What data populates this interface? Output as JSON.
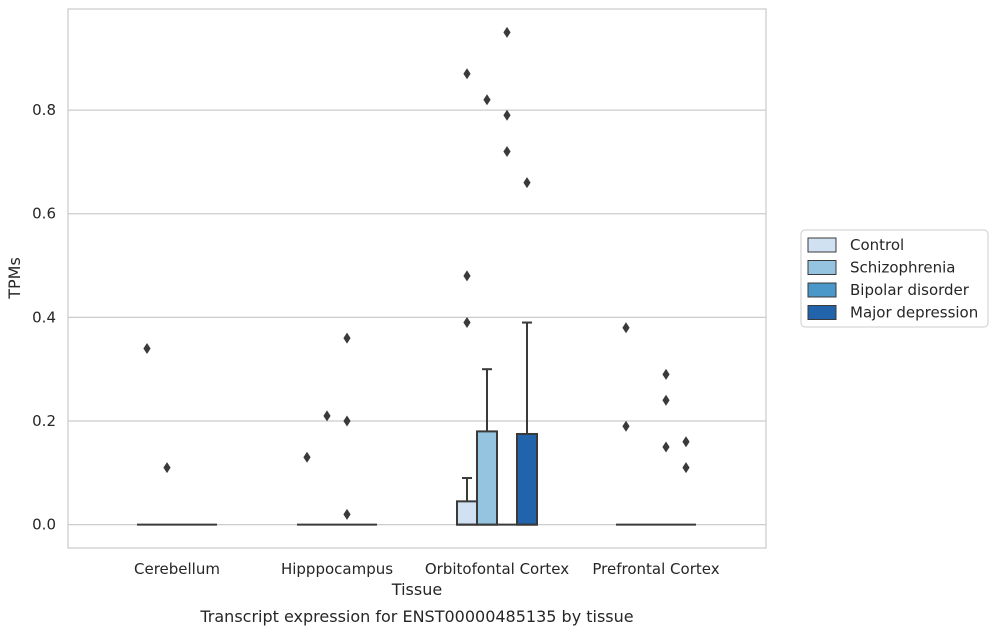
{
  "chart_data": {
    "type": "box",
    "xlabel": "Tissue",
    "ylabel": "TPMs",
    "caption": "Transcript expression for ENST00000485135 by tissue",
    "categories": [
      "Cerebellum",
      "Hipppocampus",
      "Orbitofontal Cortex",
      "Prefrontal Cortex"
    ],
    "ylim": [
      -0.045,
      0.995
    ],
    "yticks": [
      0.0,
      0.2,
      0.4,
      0.6,
      0.8
    ],
    "ytick_labels": [
      "0.0",
      "0.2",
      "0.4",
      "0.6",
      "0.8"
    ],
    "grid": "horizontal",
    "legend_position": "right",
    "series": [
      {
        "name": "Control",
        "color": "#d0e1f2",
        "boxes": [
          {
            "q1": 0.0,
            "median": 0.0,
            "q3": 0.0,
            "whisker_low": 0.0,
            "whisker_high": 0.0,
            "outliers": [
              0.34
            ]
          },
          {
            "q1": 0.0,
            "median": 0.0,
            "q3": 0.0,
            "whisker_low": 0.0,
            "whisker_high": 0.0,
            "outliers": [
              0.13
            ]
          },
          {
            "q1": 0.0,
            "median": 0.0,
            "q3": 0.045,
            "whisker_low": 0.0,
            "whisker_high": 0.09,
            "outliers": [
              0.39,
              0.48,
              0.87
            ]
          },
          {
            "q1": 0.0,
            "median": 0.0,
            "q3": 0.0,
            "whisker_low": 0.0,
            "whisker_high": 0.0,
            "outliers": [
              0.19,
              0.38
            ]
          }
        ]
      },
      {
        "name": "Schizophrenia",
        "color": "#94c4df",
        "boxes": [
          {
            "q1": 0.0,
            "median": 0.0,
            "q3": 0.0,
            "whisker_low": 0.0,
            "whisker_high": 0.0,
            "outliers": [
              0.11
            ]
          },
          {
            "q1": 0.0,
            "median": 0.0,
            "q3": 0.0,
            "whisker_low": 0.0,
            "whisker_high": 0.0,
            "outliers": [
              0.21
            ]
          },
          {
            "q1": 0.0,
            "median": 0.0,
            "q3": 0.18,
            "whisker_low": 0.0,
            "whisker_high": 0.3,
            "outliers": [
              0.82
            ]
          },
          {
            "q1": 0.0,
            "median": 0.0,
            "q3": 0.0,
            "whisker_low": 0.0,
            "whisker_high": 0.0,
            "outliers": []
          }
        ]
      },
      {
        "name": "Bipolar disorder",
        "color": "#4a98c9",
        "boxes": [
          {
            "q1": 0.0,
            "median": 0.0,
            "q3": 0.0,
            "whisker_low": 0.0,
            "whisker_high": 0.0,
            "outliers": []
          },
          {
            "q1": 0.0,
            "median": 0.0,
            "q3": 0.0,
            "whisker_low": 0.0,
            "whisker_high": 0.0,
            "outliers": [
              0.02,
              0.2,
              0.36
            ]
          },
          {
            "q1": 0.0,
            "median": 0.0,
            "q3": 0.0,
            "whisker_low": 0.0,
            "whisker_high": 0.0,
            "outliers": [
              0.72,
              0.79,
              0.95
            ]
          },
          {
            "q1": 0.0,
            "median": 0.0,
            "q3": 0.0,
            "whisker_low": 0.0,
            "whisker_high": 0.0,
            "outliers": [
              0.15,
              0.24,
              0.29
            ]
          }
        ]
      },
      {
        "name": "Major depression",
        "color": "#2164ab",
        "boxes": [
          {
            "q1": 0.0,
            "median": 0.0,
            "q3": 0.0,
            "whisker_low": 0.0,
            "whisker_high": 0.0,
            "outliers": []
          },
          {
            "q1": 0.0,
            "median": 0.0,
            "q3": 0.0,
            "whisker_low": 0.0,
            "whisker_high": 0.0,
            "outliers": []
          },
          {
            "q1": 0.0,
            "median": 0.0,
            "q3": 0.175,
            "whisker_low": 0.0,
            "whisker_high": 0.39,
            "outliers": [
              0.66
            ]
          },
          {
            "q1": 0.0,
            "median": 0.0,
            "q3": 0.0,
            "whisker_low": 0.0,
            "whisker_high": 0.0,
            "outliers": [
              0.11,
              0.16
            ]
          }
        ]
      }
    ]
  }
}
